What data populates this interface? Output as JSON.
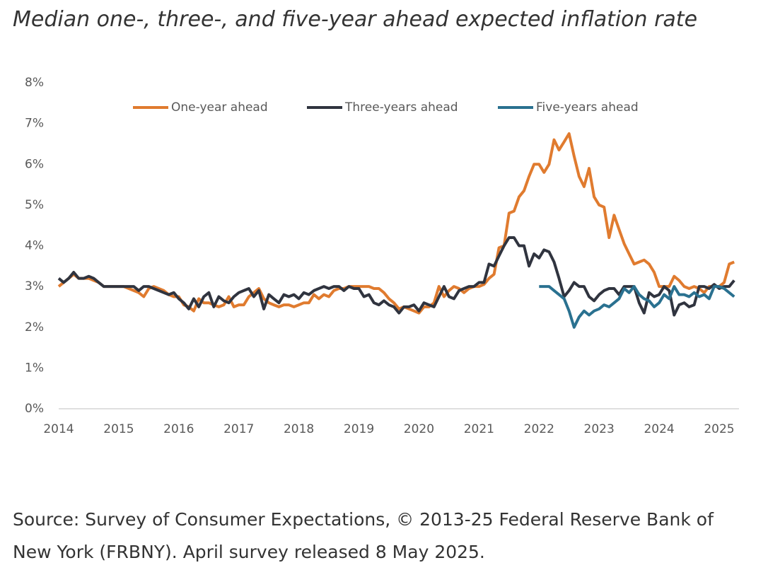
{
  "chart_data": {
    "type": "line",
    "title": "Median one-, three-, and five-year ahead expected inflation rate",
    "source": "Source: Survey of Consumer Expectations, © 2013-25 Federal Reserve Bank of New York (FRBNY). April survey released 8 May 2025.",
    "legend_position": "top",
    "grid": false,
    "xlim": [
      2014,
      2025.33
    ],
    "xticks": [
      2014,
      2015,
      2016,
      2017,
      2018,
      2019,
      2020,
      2021,
      2022,
      2023,
      2024,
      2025
    ],
    "ylim": [
      0,
      8
    ],
    "yticks": [
      {
        "value": 0,
        "label": "0%"
      },
      {
        "value": 1,
        "label": "1%"
      },
      {
        "value": 2,
        "label": "2%"
      },
      {
        "value": 3,
        "label": "3%"
      },
      {
        "value": 4,
        "label": "4%"
      },
      {
        "value": 5,
        "label": "5%"
      },
      {
        "value": 6,
        "label": "6%"
      },
      {
        "value": 7,
        "label": "7%"
      },
      {
        "value": 8,
        "label": "8%"
      }
    ],
    "x": [
      2014,
      2014.083,
      2014.167,
      2014.25,
      2014.333,
      2014.417,
      2014.5,
      2014.583,
      2014.667,
      2014.75,
      2014.833,
      2014.917,
      2015,
      2015.083,
      2015.167,
      2015.25,
      2015.333,
      2015.417,
      2015.5,
      2015.583,
      2015.667,
      2015.75,
      2015.833,
      2015.917,
      2016,
      2016.083,
      2016.167,
      2016.25,
      2016.333,
      2016.417,
      2016.5,
      2016.583,
      2016.667,
      2016.75,
      2016.833,
      2016.917,
      2017,
      2017.083,
      2017.167,
      2017.25,
      2017.333,
      2017.417,
      2017.5,
      2017.583,
      2017.667,
      2017.75,
      2017.833,
      2017.917,
      2018,
      2018.083,
      2018.167,
      2018.25,
      2018.333,
      2018.417,
      2018.5,
      2018.583,
      2018.667,
      2018.75,
      2018.833,
      2018.917,
      2019,
      2019.083,
      2019.167,
      2019.25,
      2019.333,
      2019.417,
      2019.5,
      2019.583,
      2019.667,
      2019.75,
      2019.833,
      2019.917,
      2020,
      2020.083,
      2020.167,
      2020.25,
      2020.333,
      2020.417,
      2020.5,
      2020.583,
      2020.667,
      2020.75,
      2020.833,
      2020.917,
      2021,
      2021.083,
      2021.167,
      2021.25,
      2021.333,
      2021.417,
      2021.5,
      2021.583,
      2021.667,
      2021.75,
      2021.833,
      2021.917,
      2022,
      2022.083,
      2022.167,
      2022.25,
      2022.333,
      2022.417,
      2022.5,
      2022.583,
      2022.667,
      2022.75,
      2022.833,
      2022.917,
      2023,
      2023.083,
      2023.167,
      2023.25,
      2023.333,
      2023.417,
      2023.5,
      2023.583,
      2023.667,
      2023.75,
      2023.833,
      2023.917,
      2024,
      2024.083,
      2024.167,
      2024.25,
      2024.333,
      2024.417,
      2024.5,
      2024.583,
      2024.667,
      2024.75,
      2024.833,
      2024.917,
      2025,
      2025.083,
      2025.167,
      2025.25
    ],
    "series": [
      {
        "name": "One-year ahead",
        "color": "#e07b2f",
        "values": [
          3.0,
          3.1,
          3.2,
          3.3,
          3.2,
          3.2,
          3.2,
          3.15,
          3.1,
          3.0,
          3.0,
          3.0,
          3.0,
          3.0,
          2.95,
          2.9,
          2.85,
          2.75,
          2.95,
          3.0,
          2.95,
          2.9,
          2.8,
          2.75,
          2.75,
          2.55,
          2.5,
          2.4,
          2.7,
          2.6,
          2.6,
          2.55,
          2.5,
          2.55,
          2.75,
          2.5,
          2.55,
          2.55,
          2.75,
          2.85,
          2.95,
          2.7,
          2.6,
          2.55,
          2.5,
          2.55,
          2.55,
          2.5,
          2.55,
          2.6,
          2.6,
          2.8,
          2.7,
          2.8,
          2.75,
          2.9,
          2.95,
          2.95,
          3.0,
          3.0,
          3.0,
          3.0,
          3.0,
          2.95,
          2.95,
          2.85,
          2.7,
          2.6,
          2.45,
          2.5,
          2.45,
          2.4,
          2.35,
          2.5,
          2.5,
          2.6,
          3.0,
          2.75,
          2.9,
          3.0,
          2.95,
          2.85,
          2.95,
          3.0,
          3.0,
          3.05,
          3.2,
          3.3,
          3.95,
          4.0,
          4.8,
          4.85,
          5.2,
          5.35,
          5.7,
          6.0,
          6.0,
          5.8,
          6.0,
          6.6,
          6.35,
          6.55,
          6.75,
          6.2,
          5.7,
          5.45,
          5.9,
          5.2,
          5.0,
          4.95,
          4.2,
          4.75,
          4.4,
          4.05,
          3.8,
          3.55,
          3.6,
          3.65,
          3.55,
          3.35,
          3.0,
          3.0,
          3.0,
          3.25,
          3.15,
          3.0,
          2.95,
          3.0,
          2.95,
          2.85,
          3.0,
          3.0,
          3.0,
          3.1,
          3.55,
          3.6
        ]
      },
      {
        "name": "Three-years ahead",
        "color": "#30343f",
        "values": [
          3.2,
          3.1,
          3.2,
          3.35,
          3.2,
          3.2,
          3.25,
          3.2,
          3.1,
          3.0,
          3.0,
          3.0,
          3.0,
          3.0,
          3.0,
          3.0,
          2.9,
          3.0,
          3.0,
          2.95,
          2.9,
          2.85,
          2.8,
          2.85,
          2.7,
          2.6,
          2.45,
          2.7,
          2.5,
          2.75,
          2.85,
          2.5,
          2.75,
          2.65,
          2.6,
          2.75,
          2.85,
          2.9,
          2.95,
          2.75,
          2.9,
          2.45,
          2.8,
          2.7,
          2.6,
          2.8,
          2.75,
          2.8,
          2.7,
          2.85,
          2.8,
          2.9,
          2.95,
          3.0,
          2.95,
          3.0,
          3.0,
          2.9,
          3.0,
          2.95,
          2.95,
          2.75,
          2.8,
          2.6,
          2.55,
          2.65,
          2.55,
          2.5,
          2.35,
          2.5,
          2.5,
          2.55,
          2.4,
          2.6,
          2.55,
          2.5,
          2.75,
          3.0,
          2.75,
          2.7,
          2.9,
          2.95,
          3.0,
          3.0,
          3.1,
          3.1,
          3.55,
          3.5,
          3.75,
          4.0,
          4.2,
          4.2,
          4.0,
          4.0,
          3.5,
          3.8,
          3.7,
          3.9,
          3.85,
          3.6,
          3.2,
          2.75,
          2.9,
          3.1,
          3.0,
          3.0,
          2.75,
          2.65,
          2.8,
          2.9,
          2.95,
          2.95,
          2.8,
          3.0,
          3.0,
          3.0,
          2.6,
          2.35,
          2.85,
          2.75,
          2.8,
          3.0,
          2.9,
          2.3,
          2.55,
          2.6,
          2.5,
          2.55,
          3.0,
          3.0,
          2.95,
          3.05,
          2.95,
          3.0,
          3.0,
          3.15
        ]
      },
      {
        "name": "Five-years ahead",
        "color": "#2a7190",
        "values": [
          null,
          null,
          null,
          null,
          null,
          null,
          null,
          null,
          null,
          null,
          null,
          null,
          null,
          null,
          null,
          null,
          null,
          null,
          null,
          null,
          null,
          null,
          null,
          null,
          null,
          null,
          null,
          null,
          null,
          null,
          null,
          null,
          null,
          null,
          null,
          null,
          null,
          null,
          null,
          null,
          null,
          null,
          null,
          null,
          null,
          null,
          null,
          null,
          null,
          null,
          null,
          null,
          null,
          null,
          null,
          null,
          null,
          null,
          null,
          null,
          null,
          null,
          null,
          null,
          null,
          null,
          null,
          null,
          null,
          null,
          null,
          null,
          null,
          null,
          null,
          null,
          null,
          null,
          null,
          null,
          null,
          null,
          null,
          null,
          null,
          null,
          null,
          null,
          null,
          null,
          null,
          null,
          null,
          null,
          null,
          null,
          3.0,
          3.0,
          3.0,
          2.9,
          2.8,
          2.7,
          2.4,
          2.0,
          2.25,
          2.4,
          2.3,
          2.4,
          2.45,
          2.55,
          2.5,
          2.6,
          2.7,
          2.95,
          2.85,
          3.0,
          2.8,
          2.7,
          2.65,
          2.5,
          2.6,
          2.8,
          2.7,
          3.0,
          2.8,
          2.8,
          2.75,
          2.85,
          2.75,
          2.8,
          2.7,
          3.0,
          3.0,
          2.95,
          2.85,
          2.75
        ]
      }
    ]
  }
}
